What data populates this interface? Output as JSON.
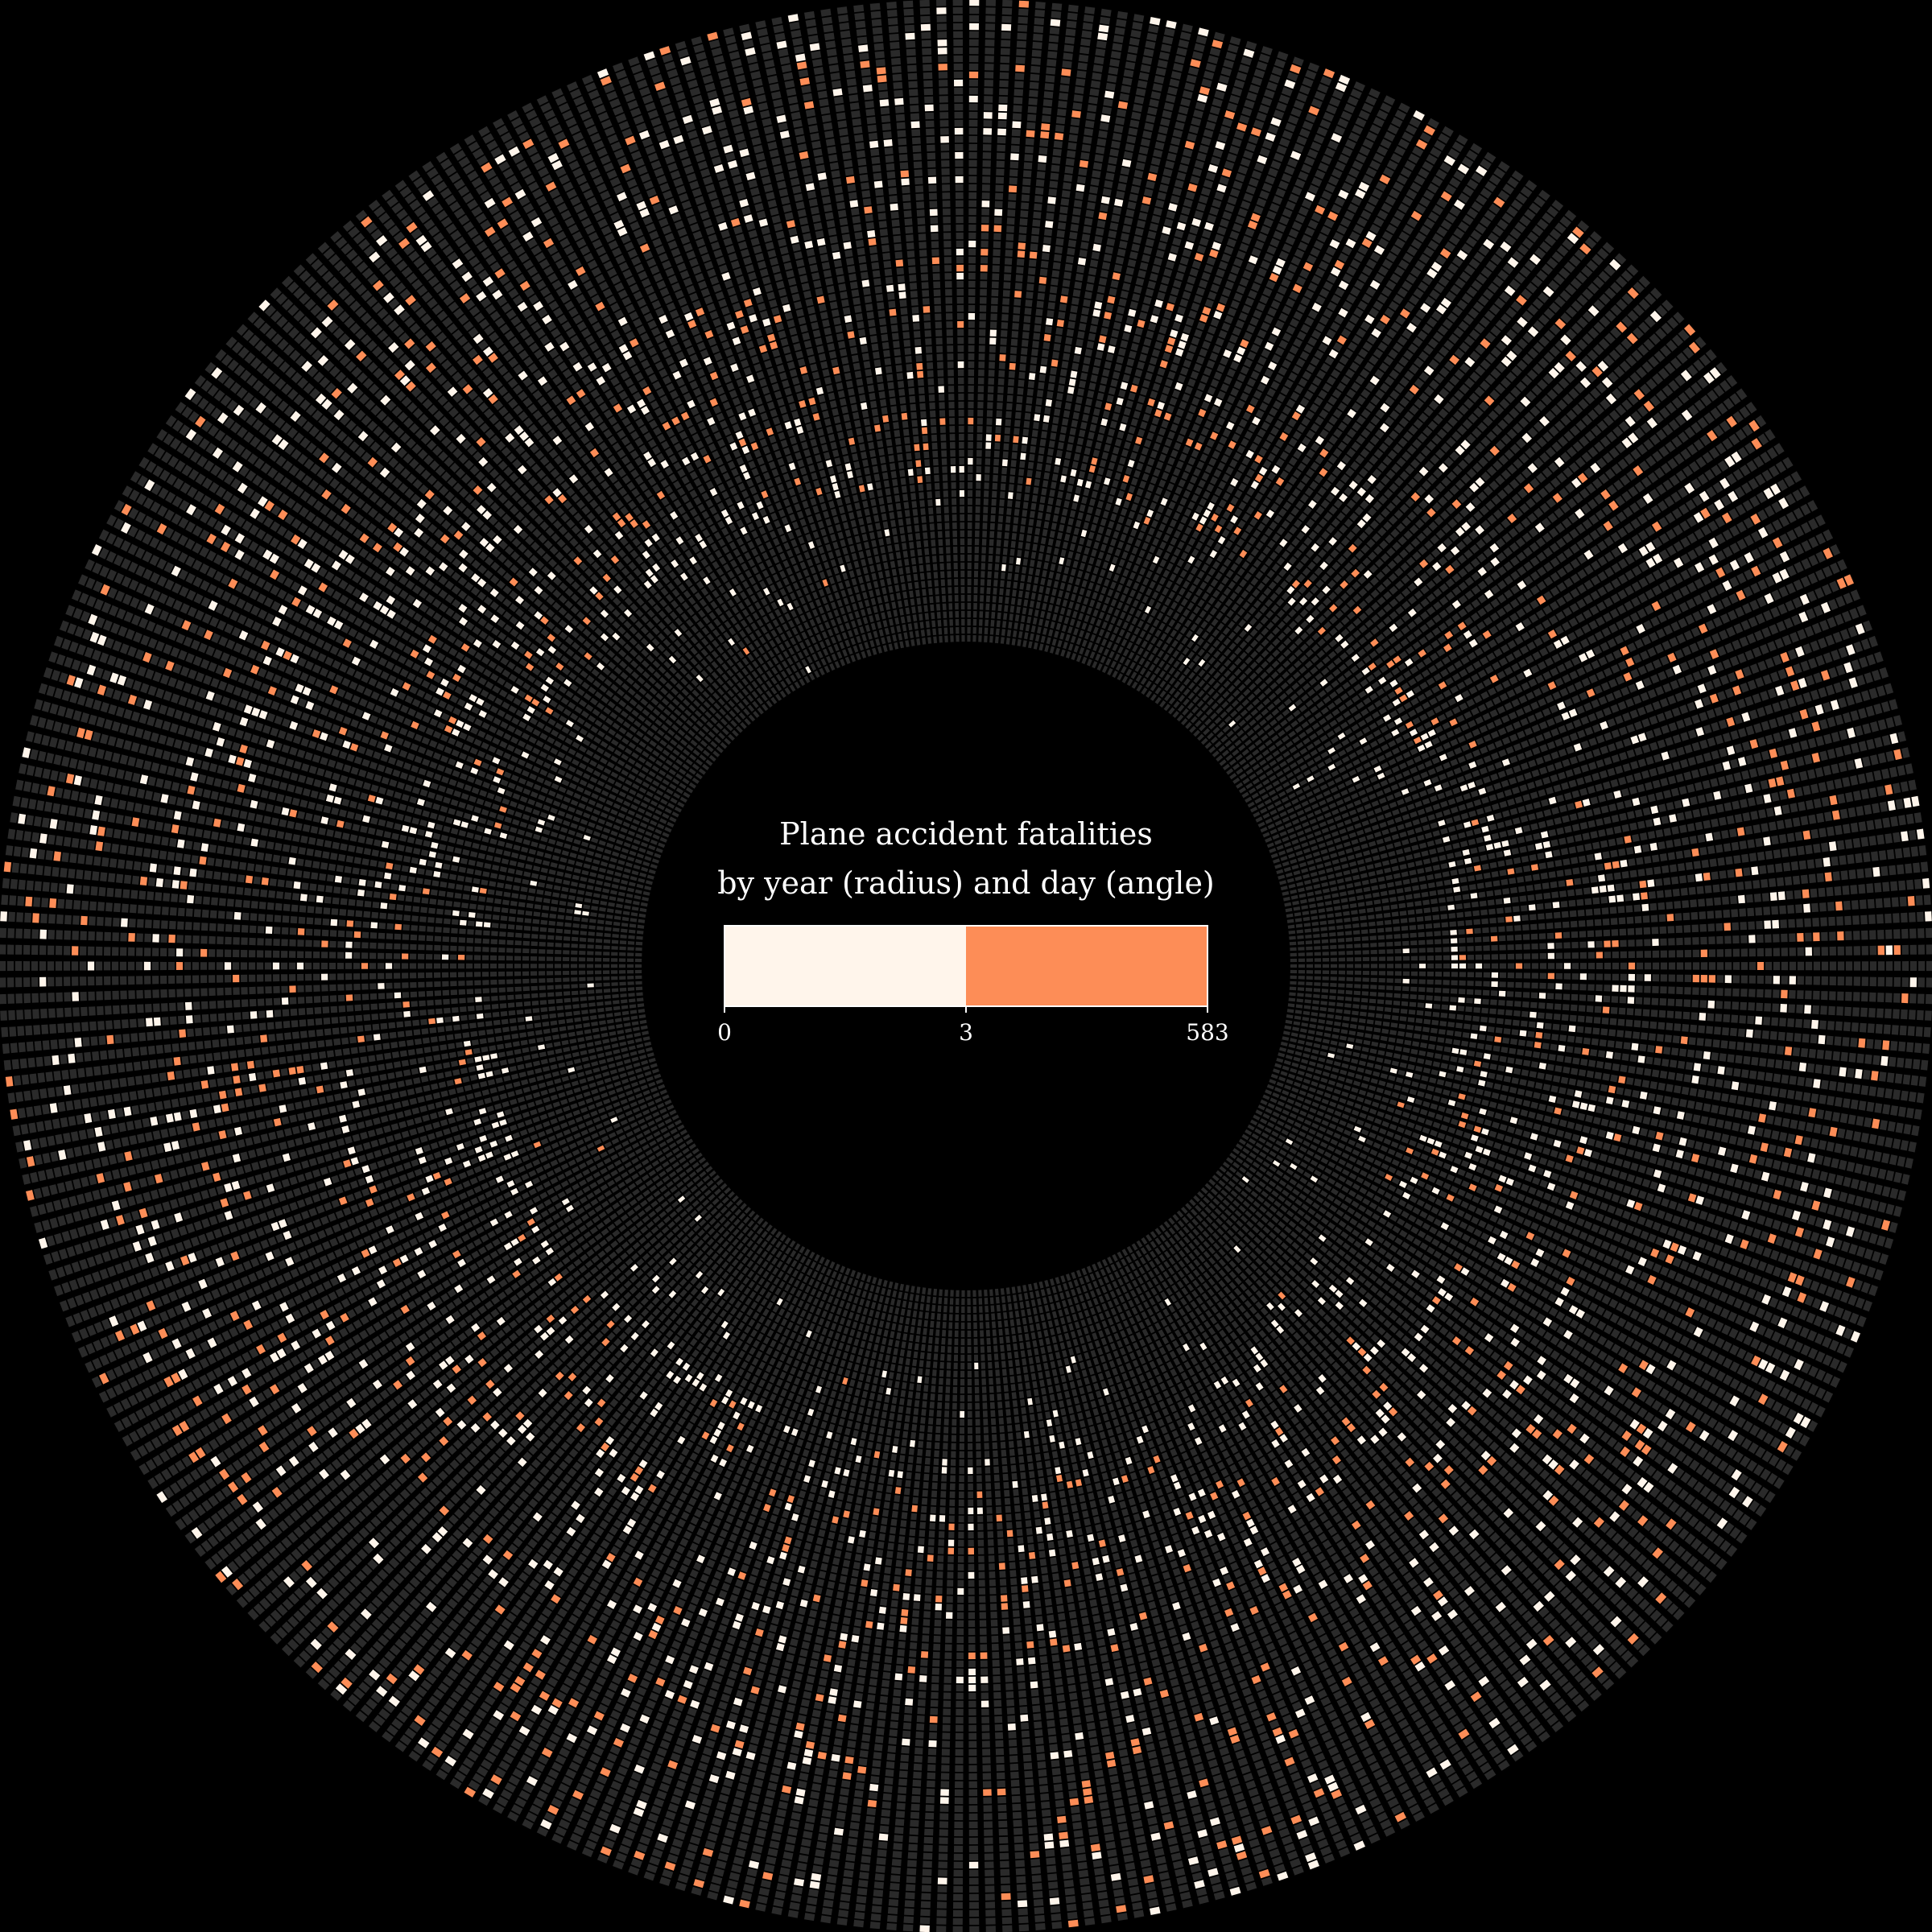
{
  "chart_data": {
    "type": "heatmap",
    "layout": "radial",
    "radius_encodes": "year",
    "angle_encodes": "day",
    "title_lines": [
      "Plane accident fatalities",
      "by year (radius) and day (angle)"
    ],
    "color_scale": {
      "thresholds": [
        0,
        3,
        583
      ],
      "tick_labels": [
        "0",
        "3",
        "583"
      ],
      "colors": [
        "#fff5eb",
        "#fd8d57"
      ],
      "empty_color": "#2a2a2a",
      "background": "#000000",
      "scale_border": "#ffffff"
    },
    "rings": 80,
    "days_per_ring": 366,
    "accident_density_by_ring": [
      0.0,
      0.002,
      0.004,
      0.006,
      0.008,
      0.01,
      0.012,
      0.014,
      0.016,
      0.018,
      0.02,
      0.022,
      0.025,
      0.028,
      0.032,
      0.036,
      0.04,
      0.046,
      0.055,
      0.07,
      0.16,
      0.17,
      0.16,
      0.15,
      0.14,
      0.13,
      0.12,
      0.12,
      0.12,
      0.12,
      0.12,
      0.12,
      0.12,
      0.12,
      0.12,
      0.12,
      0.12,
      0.12,
      0.12,
      0.12,
      0.12,
      0.12,
      0.12,
      0.12,
      0.12,
      0.12,
      0.12,
      0.12,
      0.12,
      0.12,
      0.12,
      0.12,
      0.12,
      0.12,
      0.12,
      0.12,
      0.12,
      0.12,
      0.12,
      0.12,
      0.12,
      0.12,
      0.12,
      0.12,
      0.12,
      0.12,
      0.12,
      0.12,
      0.12,
      0.12,
      0.12,
      0.11,
      0.11,
      0.11,
      0.11,
      0.1,
      0.1,
      0.1,
      0.1,
      0.1
    ],
    "high_fatality_share_by_ring": [
      0.0,
      0.0,
      0.0,
      0.0,
      0.0,
      0.0,
      0.0,
      0.05,
      0.05,
      0.05,
      0.05,
      0.05,
      0.05,
      0.05,
      0.05,
      0.05,
      0.05,
      0.05,
      0.05,
      0.05,
      0.15,
      0.2,
      0.25,
      0.3,
      0.3,
      0.35,
      0.35,
      0.35,
      0.35,
      0.35,
      0.35,
      0.35,
      0.35,
      0.35,
      0.35,
      0.35,
      0.35,
      0.35,
      0.35,
      0.35,
      0.35,
      0.35,
      0.35,
      0.35,
      0.35,
      0.35,
      0.35,
      0.35,
      0.35,
      0.35,
      0.35,
      0.35,
      0.35,
      0.35,
      0.35,
      0.35,
      0.35,
      0.35,
      0.35,
      0.35,
      0.35,
      0.35,
      0.35,
      0.35,
      0.35,
      0.35,
      0.35,
      0.35,
      0.35,
      0.35,
      0.35,
      0.35,
      0.35,
      0.35,
      0.35,
      0.35,
      0.35,
      0.35,
      0.35,
      0.35
    ]
  }
}
